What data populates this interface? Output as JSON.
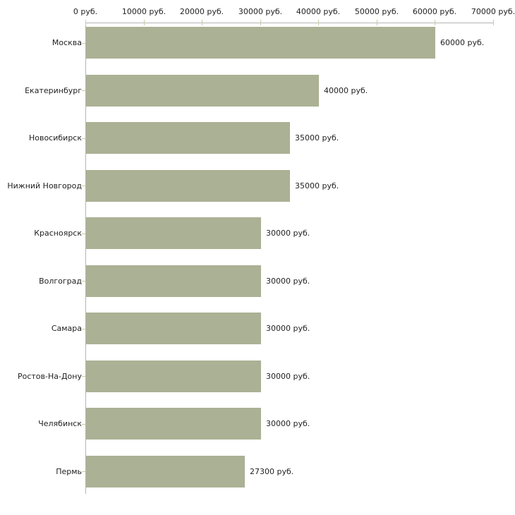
{
  "chart_data": {
    "type": "bar",
    "orientation": "horizontal",
    "title": "",
    "categories": [
      "Москва",
      "Екатеринбург",
      "Новосибирск",
      "Нижний Новгород",
      "Красноярск",
      "Волгоград",
      "Самара",
      "Ростов-На-Дону",
      "Челябинск",
      "Пермь"
    ],
    "values": [
      60000,
      40000,
      35000,
      35000,
      30000,
      30000,
      30000,
      30000,
      30000,
      27300
    ],
    "value_labels": [
      "60000 руб.",
      "40000 руб.",
      "35000 руб.",
      "35000 руб.",
      "30000 руб.",
      "30000 руб.",
      "30000 руб.",
      "30000 руб.",
      "30000 руб.",
      "27300 руб."
    ],
    "unit": "руб.",
    "x_axis": {
      "position": "top",
      "min": 0,
      "max": 70000,
      "ticks": [
        0,
        10000,
        20000,
        30000,
        40000,
        50000,
        60000,
        70000
      ],
      "tick_labels": [
        "0 руб.",
        "10000 руб.",
        "20000 руб.",
        "30000 руб.",
        "40000 руб.",
        "50000 руб.",
        "60000 руб.",
        "70000 руб."
      ]
    },
    "legend": false,
    "grid": false,
    "colors": {
      "bar_fill": "#abb194",
      "axis_line": "#b3b3b3",
      "x_tick": "#c9cca7",
      "y_tick": "#c8c9a8",
      "text": "#222222",
      "background": "#ffffff"
    }
  }
}
